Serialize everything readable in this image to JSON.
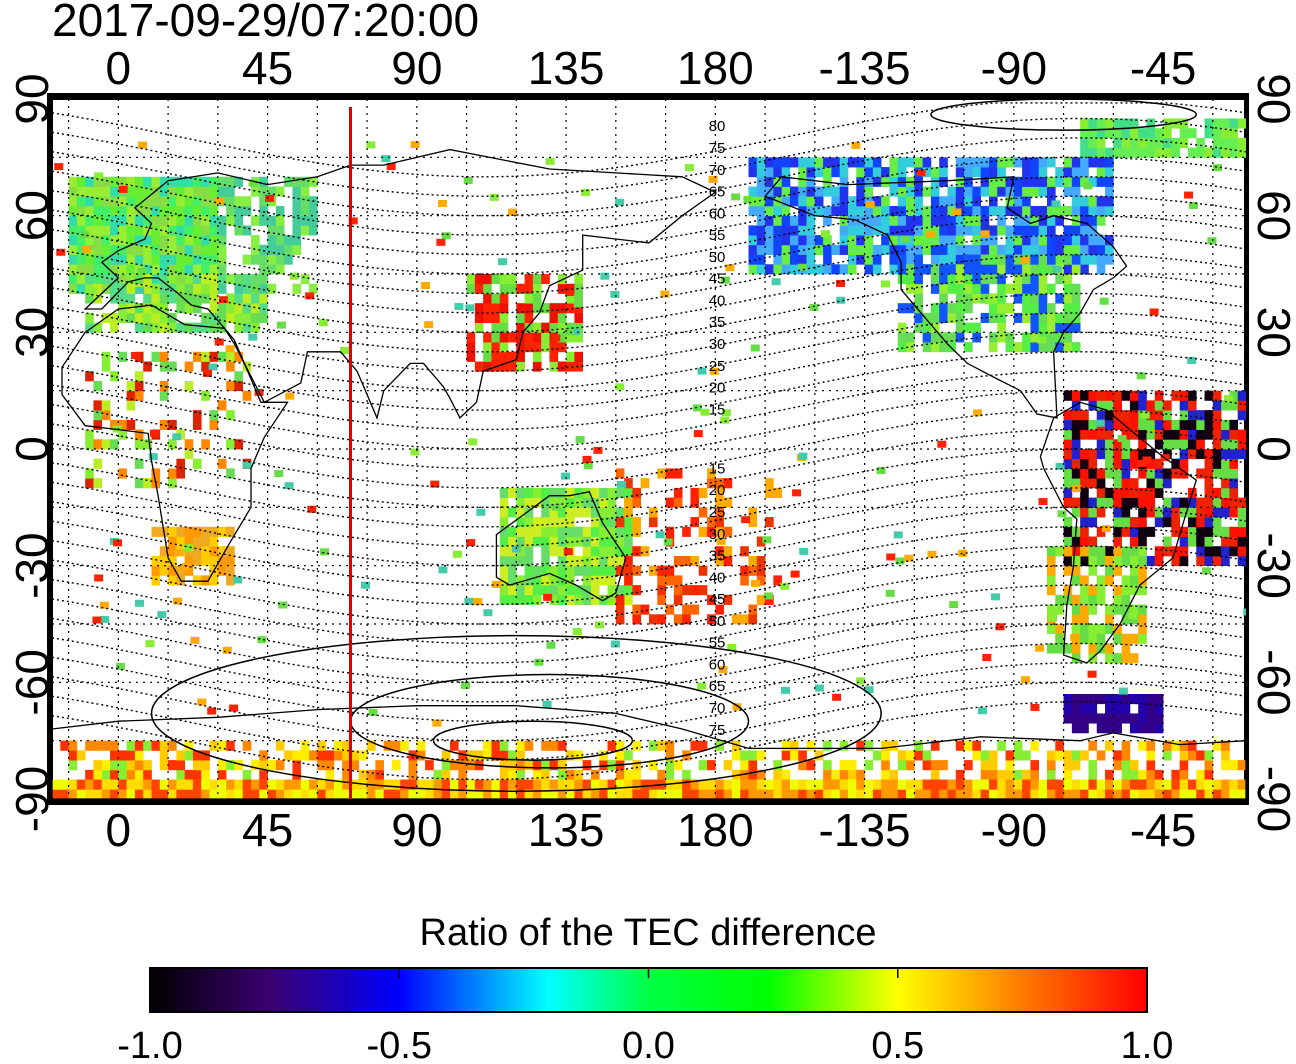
{
  "timestamp": "2017-09-29/07:20:00",
  "axes": {
    "lon_ticks_top": [
      "0",
      "45",
      "90",
      "135",
      "180",
      "-135",
      "-90",
      "-45"
    ],
    "lon_ticks_bottom": [
      "0",
      "45",
      "90",
      "135",
      "180",
      "-135",
      "-90",
      "-45"
    ],
    "lat_ticks_left": [
      "90",
      "60",
      "30",
      "0",
      "-30",
      "-60",
      "-90"
    ],
    "lat_ticks_right": [
      "90",
      "60",
      "30",
      "0",
      "-30",
      "-60",
      "-90"
    ]
  },
  "map": {
    "lon_range": [
      -20,
      340
    ],
    "lat_range": [
      -90,
      90
    ],
    "meridian_line_lon": 70,
    "meridian_line_color": "#e00000",
    "magnetic_lat_labels_north": [
      "80",
      "75",
      "70",
      "65",
      "60",
      "55",
      "50",
      "45",
      "40",
      "35",
      "30",
      "25",
      "20",
      "15"
    ],
    "magnetic_lat_labels_south": [
      "15",
      "20",
      "25",
      "30",
      "35",
      "40",
      "45",
      "50",
      "55",
      "60",
      "65",
      "70",
      "75"
    ]
  },
  "colorbar": {
    "title": "Ratio of the TEC difference",
    "tick_labels": [
      "-1.0",
      "-0.5",
      "0.0",
      "0.5",
      "1.0"
    ],
    "range": [
      -1.0,
      1.0
    ],
    "colors": [
      "#000000",
      "#3a0070",
      "#0000ff",
      "#00ffff",
      "#00ff00",
      "#ffff00",
      "#ff8000",
      "#ff0000"
    ]
  }
}
